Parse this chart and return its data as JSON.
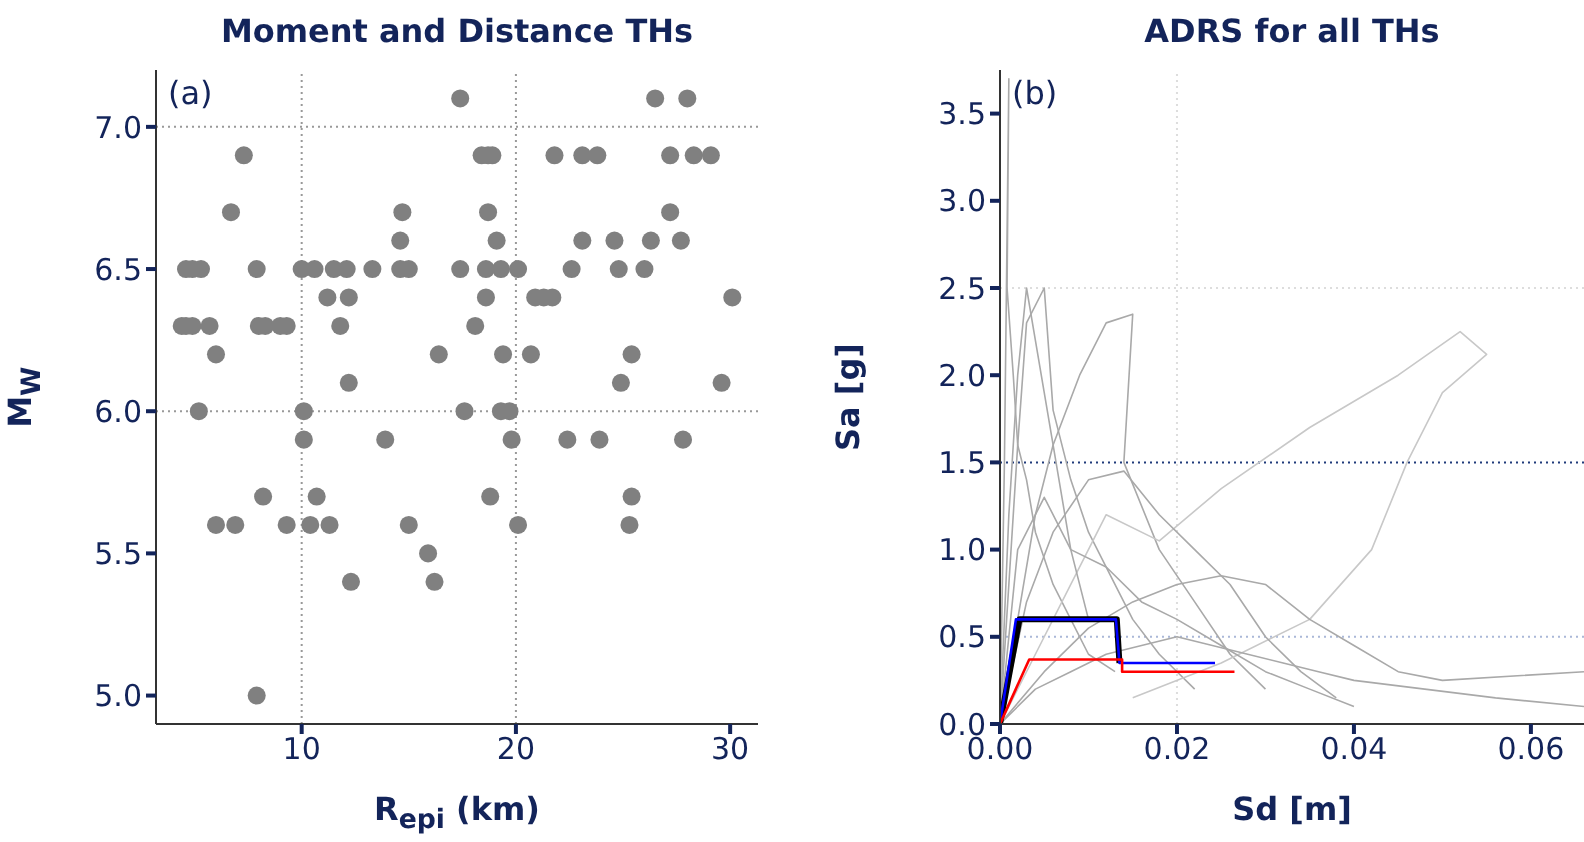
{
  "chart_data": [
    {
      "type": "scatter",
      "title": "Moment and Distance THs",
      "xlabel": "R$_{epi}$ (km)",
      "ylabel": "M$_{W}$",
      "annotations": [
        "(a)"
      ],
      "marker": "circle",
      "xlim": [
        3.2,
        31.3
      ],
      "ylim": [
        4.9,
        7.2
      ],
      "xticks": [
        10,
        20,
        30
      ],
      "yticks": [
        {
          "value": 5,
          "label": "5.0"
        },
        {
          "value": 5.5,
          "label": "5.5"
        },
        {
          "value": 6,
          "label": "6.0"
        },
        {
          "value": 6.5,
          "label": "6.5"
        },
        {
          "value": 7,
          "label": "7.0"
        }
      ],
      "ref_lines": [
        {
          "axis": "y",
          "value": 6,
          "label": null,
          "color": "#999999",
          "line_style": "dotted"
        },
        {
          "axis": "y",
          "value": 7,
          "label": null,
          "color": "#999999",
          "line_style": "dotted"
        },
        {
          "axis": "x",
          "value": 10,
          "label": null,
          "color": "#999999",
          "line_style": "dotted"
        },
        {
          "axis": "x",
          "value": 20,
          "label": null,
          "color": "#999999",
          "line_style": "dotted"
        }
      ],
      "series": [
        {
          "color": "#808080",
          "x": [
            7.3,
            6.7,
            4.6,
            4.9,
            5.3,
            7.9,
            10.0,
            10.6,
            11.5,
            12.1,
            13.3,
            11.2,
            12.2,
            4.4,
            4.6,
            4.9,
            5.7,
            8.0,
            8.3,
            9.0,
            9.3,
            11.8,
            6.0,
            12.2,
            5.2,
            10.1,
            10.1,
            8.2,
            10.7,
            6.0,
            6.9,
            9.3,
            10.4,
            11.3,
            12.3,
            7.9,
            17.4,
            26.5,
            28.0,
            18.4,
            18.7,
            18.9,
            21.8,
            23.1,
            23.8,
            27.2,
            28.3,
            29.1,
            14.7,
            18.7,
            27.2,
            14.6,
            19.1,
            23.1,
            24.6,
            26.3,
            27.7,
            14.6,
            15.0,
            17.4,
            18.6,
            19.3,
            20.1,
            22.6,
            24.8,
            26.0,
            18.6,
            20.9,
            21.3,
            21.7,
            30.1,
            18.1,
            16.4,
            19.4,
            20.7,
            25.4,
            24.9,
            29.6,
            17.6,
            19.3,
            19.7,
            13.9,
            19.8,
            22.4,
            23.9,
            27.8,
            18.8,
            25.4,
            15.0,
            20.1,
            25.3,
            15.9,
            16.2
          ],
          "values": [
            6.9,
            6.7,
            6.5,
            6.5,
            6.5,
            6.5,
            6.5,
            6.5,
            6.5,
            6.5,
            6.5,
            6.4,
            6.4,
            6.3,
            6.3,
            6.3,
            6.3,
            6.3,
            6.3,
            6.3,
            6.3,
            6.3,
            6.2,
            6.1,
            6.0,
            6.0,
            5.9,
            5.7,
            5.7,
            5.6,
            5.6,
            5.6,
            5.6,
            5.6,
            5.4,
            5.0,
            7.1,
            7.1,
            7.1,
            6.9,
            6.9,
            6.9,
            6.9,
            6.9,
            6.9,
            6.9,
            6.9,
            6.9,
            6.7,
            6.7,
            6.7,
            6.6,
            6.6,
            6.6,
            6.6,
            6.6,
            6.6,
            6.5,
            6.5,
            6.5,
            6.5,
            6.5,
            6.5,
            6.5,
            6.5,
            6.5,
            6.4,
            6.4,
            6.4,
            6.4,
            6.4,
            6.3,
            6.2,
            6.2,
            6.2,
            6.2,
            6.1,
            6.1,
            6.0,
            6.0,
            6.0,
            5.9,
            5.9,
            5.9,
            5.9,
            5.9,
            5.7,
            5.7,
            5.6,
            5.6,
            5.6,
            5.5,
            5.4
          ]
        }
      ]
    },
    {
      "type": "line",
      "title": "ADRS for all THs",
      "xlabel": "Sd [m]",
      "ylabel": "Sa [g]",
      "annotations": [
        "(b)"
      ],
      "marker": "none",
      "xlim": [
        0,
        0.066
      ],
      "ylim": [
        0,
        3.75
      ],
      "xticks": [
        {
          "value": 0,
          "label": "0.00"
        },
        {
          "value": 0.02,
          "label": "0.02"
        },
        {
          "value": 0.04,
          "label": "0.04"
        },
        {
          "value": 0.06,
          "label": "0.06"
        }
      ],
      "yticks": [
        {
          "value": 0,
          "label": "0.0"
        },
        {
          "value": 0.5,
          "label": "0.5"
        },
        {
          "value": 1,
          "label": "1.0"
        },
        {
          "value": 1.5,
          "label": "1.5"
        },
        {
          "value": 2,
          "label": "2.0"
        },
        {
          "value": 2.5,
          "label": "2.5"
        },
        {
          "value": 3,
          "label": "3.0"
        },
        {
          "value": 3.5,
          "label": "3.5"
        }
      ],
      "ref_lines": [
        {
          "axis": "y",
          "value": 1.5,
          "label": null,
          "color": "#1f3a7a",
          "line_style": "dotted"
        },
        {
          "axis": "y",
          "value": 0.5,
          "label": null,
          "color": "#aab8d8",
          "line_style": "dotted"
        },
        {
          "axis": "y",
          "value": 2.5,
          "label": null,
          "color": "#dddddd",
          "line_style": "dotted"
        },
        {
          "axis": "x",
          "value": 0.02,
          "label": null,
          "color": "#dddddd",
          "line_style": "dotted"
        }
      ],
      "series": [
        {
          "color": "#a9a9a9",
          "x": [
            0,
            0.0005,
            0.001,
            0.0008,
            0.0015,
            0.002,
            0.003,
            0.004,
            0.006,
            0.008,
            0.01,
            0.013
          ],
          "values": [
            0,
            1.5,
            3.7,
            2.5,
            2.0,
            1.6,
            1.4,
            1.1,
            0.8,
            0.6,
            0.4,
            0.3
          ]
        },
        {
          "color": "#a9a9a9",
          "x": [
            0,
            0.001,
            0.002,
            0.003,
            0.005,
            0.006,
            0.008,
            0.01,
            0.012,
            0.015,
            0.018,
            0.022
          ],
          "values": [
            0,
            0.8,
            1.6,
            2.3,
            2.5,
            1.8,
            1.4,
            1.1,
            0.9,
            0.6,
            0.4,
            0.2
          ]
        },
        {
          "color": "#a9a9a9",
          "x": [
            0,
            0.002,
            0.004,
            0.006,
            0.009,
            0.012,
            0.015,
            0.014,
            0.018,
            0.022,
            0.026,
            0.03
          ],
          "values": [
            0,
            0.6,
            1.2,
            1.6,
            2.0,
            2.3,
            2.35,
            1.5,
            1.0,
            0.7,
            0.4,
            0.2
          ]
        },
        {
          "color": "#c8c8c8",
          "x": [
            0,
            0.004,
            0.008,
            0.012,
            0.018,
            0.025,
            0.035,
            0.045,
            0.052,
            0.055,
            0.05,
            0.046,
            0.042,
            0.035,
            0.025,
            0.015
          ],
          "values": [
            0,
            0.4,
            0.8,
            1.2,
            1.05,
            1.35,
            1.7,
            2.0,
            2.25,
            2.12,
            1.9,
            1.5,
            1.0,
            0.6,
            0.35,
            0.15
          ]
        },
        {
          "color": "#a9a9a9",
          "x": [
            0,
            0.005,
            0.01,
            0.015,
            0.02,
            0.025,
            0.03,
            0.035,
            0.04,
            0.045,
            0.05,
            0.066
          ],
          "values": [
            0,
            0.3,
            0.55,
            0.7,
            0.8,
            0.85,
            0.8,
            0.6,
            0.45,
            0.3,
            0.25,
            0.3
          ]
        },
        {
          "color": "#a9a9a9",
          "x": [
            0,
            0.002,
            0.005,
            0.008,
            0.012,
            0.016,
            0.02,
            0.025,
            0.03,
            0.035,
            0.04
          ],
          "values": [
            0,
            1.0,
            1.3,
            1.0,
            0.9,
            0.7,
            0.6,
            0.45,
            0.3,
            0.2,
            0.1
          ]
        },
        {
          "color": "#a9a9a9",
          "x": [
            0,
            0.003,
            0.006,
            0.01,
            0.014,
            0.018,
            0.022,
            0.026,
            0.03,
            0.034,
            0.038
          ],
          "values": [
            0,
            0.7,
            1.1,
            1.4,
            1.45,
            1.2,
            1.0,
            0.8,
            0.5,
            0.3,
            0.15
          ]
        },
        {
          "color": "#a9a9a9",
          "x": [
            0,
            0.004,
            0.008,
            0.012,
            0.016,
            0.02,
            0.024,
            0.028,
            0.032,
            0.036,
            0.04,
            0.048,
            0.056,
            0.066
          ],
          "values": [
            0,
            0.2,
            0.3,
            0.4,
            0.45,
            0.5,
            0.45,
            0.4,
            0.35,
            0.3,
            0.25,
            0.2,
            0.15,
            0.1
          ]
        },
        {
          "color": "#a9a9a9",
          "x": [
            0,
            0.001,
            0.002,
            0.003,
            0.004,
            0.005,
            0.006,
            0.008,
            0.01
          ],
          "values": [
            0,
            1.2,
            2.0,
            2.5,
            2.2,
            1.9,
            1.6,
            1.0,
            0.6
          ]
        },
        {
          "color": "#000000",
          "x": [
            0,
            0.0022,
            0.0132,
            0.0135
          ],
          "values": [
            0,
            0.6,
            0.6,
            0.35
          ]
        },
        {
          "color": "#0000ff",
          "x": [
            0,
            0.0018,
            0.0131,
            0.0135,
            0.0243
          ],
          "values": [
            0,
            0.6,
            0.6,
            0.35,
            0.35
          ]
        },
        {
          "color": "#ff0000",
          "x": [
            0,
            0.0033,
            0.0138,
            0.0138,
            0.0265
          ],
          "values": [
            0,
            0.37,
            0.37,
            0.3,
            0.3
          ]
        }
      ]
    }
  ]
}
